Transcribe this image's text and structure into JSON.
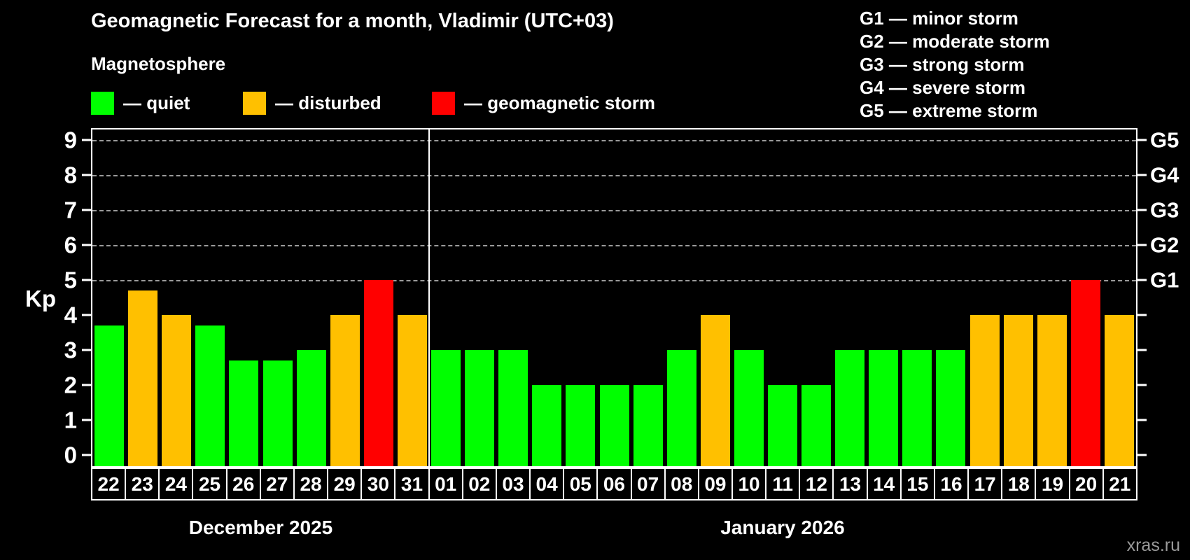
{
  "header": {
    "title": "Geomagnetic Forecast for a month, Vladimir (UTC+03)",
    "subtitle": "Magnetosphere"
  },
  "colors": {
    "quiet": "#00ff00",
    "disturbed": "#ffc000",
    "storm": "#ff0000",
    "background": "#000000",
    "grid": "#9a9a9a",
    "axis": "#ffffff",
    "watermark": "#9a9a9a"
  },
  "legend": [
    {
      "status": "quiet",
      "label": "— quiet"
    },
    {
      "status": "disturbed",
      "label": "— disturbed"
    },
    {
      "status": "storm",
      "label": "— geomagnetic storm"
    }
  ],
  "g_scale_legend": [
    "G1 — minor storm",
    "G2 — moderate storm",
    "G3 — strong storm",
    "G4 — severe storm",
    "G5 — extreme storm"
  ],
  "axes": {
    "y_label": "Kp",
    "y_ticks": [
      0,
      1,
      2,
      3,
      4,
      5,
      6,
      7,
      8,
      9
    ],
    "grid_kp": [
      5,
      6,
      7,
      8,
      9
    ],
    "right_labels": [
      {
        "kp": 5,
        "label": "G1"
      },
      {
        "kp": 6,
        "label": "G2"
      },
      {
        "kp": 7,
        "label": "G3"
      },
      {
        "kp": 8,
        "label": "G4"
      },
      {
        "kp": 9,
        "label": "G5"
      }
    ]
  },
  "months": [
    {
      "label": "December 2025",
      "days": 10
    },
    {
      "label": "January 2026",
      "days": 21
    }
  ],
  "watermark": "xras.ru",
  "chart_data": {
    "type": "bar",
    "title": "Geomagnetic Forecast for a month, Vladimir (UTC+03)",
    "xlabel": "",
    "ylabel": "Kp",
    "ylim": [
      0,
      9.4
    ],
    "grid": "dashed horizontal at Kp 5-9 only",
    "legend_position": "top-left",
    "categories": [
      "22",
      "23",
      "24",
      "25",
      "26",
      "27",
      "28",
      "29",
      "30",
      "31",
      "01",
      "02",
      "03",
      "04",
      "05",
      "06",
      "07",
      "08",
      "09",
      "10",
      "11",
      "12",
      "13",
      "14",
      "15",
      "16",
      "17",
      "18",
      "19",
      "20",
      "21"
    ],
    "values": [
      3.7,
      4.7,
      4,
      3.7,
      2.7,
      2.7,
      3,
      4,
      5,
      4,
      3,
      3,
      3,
      2,
      2,
      2,
      2,
      3,
      4,
      3,
      2,
      2,
      3,
      3,
      3,
      3,
      4,
      4,
      4,
      5,
      4
    ],
    "statuses": [
      "quiet",
      "disturbed",
      "disturbed",
      "quiet",
      "quiet",
      "quiet",
      "quiet",
      "disturbed",
      "storm",
      "disturbed",
      "quiet",
      "quiet",
      "quiet",
      "quiet",
      "quiet",
      "quiet",
      "quiet",
      "quiet",
      "disturbed",
      "quiet",
      "quiet",
      "quiet",
      "quiet",
      "quiet",
      "quiet",
      "quiet",
      "disturbed",
      "disturbed",
      "disturbed",
      "storm",
      "disturbed"
    ]
  }
}
